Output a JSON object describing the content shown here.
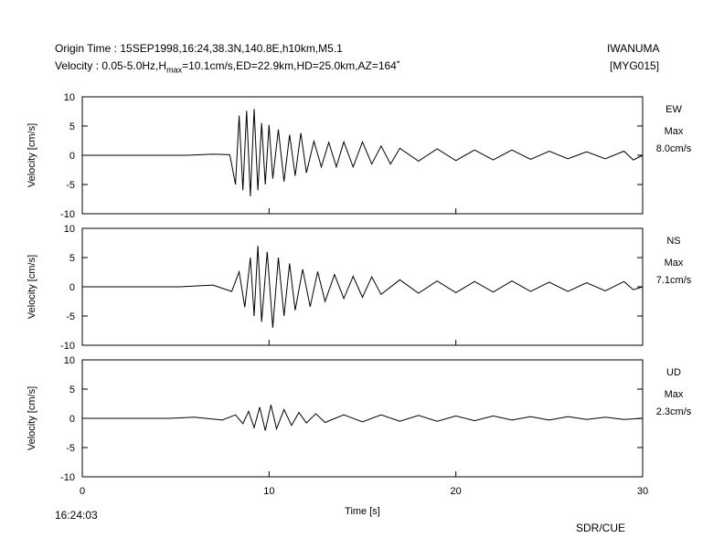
{
  "header": {
    "origin_line": "Origin Time : 15SEP1998,16:24,38.3N,140.8E,h10km,M5.1",
    "velocity_prefix": "Velocity : 0.05-5.0Hz,H",
    "velocity_sub": "max",
    "velocity_suffix": "=10.1cm/s,ED=22.9km,HD=25.0km,AZ=164˚",
    "station": "IWANUMA",
    "station_code": "[MYG015]"
  },
  "footer": {
    "start_time": "16:24:03",
    "credit": "SDR/CUE"
  },
  "chart_data": {
    "type": "line",
    "xlabel": "Time [s]",
    "xlim": [
      0,
      30
    ],
    "xticks": [
      "0",
      "10",
      "20",
      "30"
    ],
    "ylabel": "Velocity [cm/s]",
    "ylim": [
      -10,
      10
    ],
    "yticks": [
      "10",
      "5",
      "0",
      "-5",
      "-10"
    ],
    "panels": [
      {
        "component": "EW",
        "max_label": "Max",
        "max_value": "8.0cm/s",
        "series": {
          "x": [
            0,
            5.6,
            7.0,
            7.9,
            8.2,
            8.4,
            8.6,
            8.8,
            9.0,
            9.2,
            9.4,
            9.6,
            9.8,
            10.0,
            10.2,
            10.5,
            10.8,
            11.1,
            11.4,
            11.7,
            12.0,
            12.4,
            12.8,
            13.2,
            13.6,
            14.0,
            14.5,
            15.0,
            15.5,
            16.0,
            16.5,
            17.0,
            18.0,
            19.0,
            20.0,
            21.0,
            22.0,
            23.0,
            24.0,
            25.0,
            26.0,
            27.0,
            28.0,
            29.0,
            29.5,
            30.0
          ],
          "y": [
            0,
            0,
            0.2,
            0.1,
            -5,
            6.8,
            -6,
            7.6,
            -7,
            7.9,
            -6,
            5.5,
            -5,
            5.2,
            -4,
            4.4,
            -4.5,
            3.5,
            -3.5,
            3.8,
            -3,
            2.4,
            -2,
            2.2,
            -2,
            2.3,
            -2,
            2.3,
            -1.5,
            1.6,
            -1.5,
            1.2,
            -1,
            1.1,
            -0.9,
            0.9,
            -0.8,
            0.9,
            -0.7,
            0.7,
            -0.6,
            0.6,
            -0.6,
            0.7,
            -0.8,
            0
          ]
        }
      },
      {
        "component": "NS",
        "max_label": "Max",
        "max_value": "7.1cm/s",
        "series": {
          "x": [
            0,
            5.2,
            7.0,
            8.0,
            8.4,
            8.7,
            9.0,
            9.2,
            9.4,
            9.6,
            9.9,
            10.2,
            10.5,
            10.8,
            11.1,
            11.4,
            11.8,
            12.2,
            12.6,
            13.0,
            13.5,
            14.0,
            14.5,
            15.0,
            15.5,
            16.0,
            17.0,
            18.0,
            19.0,
            20.0,
            21.0,
            22.0,
            23.0,
            24.0,
            25.0,
            26.0,
            27.0,
            28.0,
            29.0,
            29.5,
            30.0
          ],
          "y": [
            0,
            0,
            0.3,
            -0.8,
            2.6,
            -3.5,
            5,
            -5,
            7,
            -6,
            6,
            -7,
            5,
            -5,
            4,
            -4,
            3,
            -3.4,
            2.6,
            -2.5,
            2.1,
            -2,
            1.8,
            -1.8,
            1.7,
            -1.3,
            1.2,
            -1.1,
            1,
            -1,
            0.9,
            -0.9,
            1,
            -0.8,
            0.8,
            -0.8,
            0.7,
            -0.7,
            0.9,
            -0.5,
            0
          ]
        }
      },
      {
        "component": "UD",
        "max_label": "Max",
        "max_value": "2.3cm/s",
        "series": {
          "x": [
            0,
            4.7,
            6.0,
            7.5,
            8.2,
            8.6,
            8.9,
            9.2,
            9.5,
            9.8,
            10.1,
            10.4,
            10.8,
            11.2,
            11.6,
            12.0,
            12.5,
            13.0,
            14.0,
            15.0,
            16.0,
            17.0,
            18.0,
            19.0,
            20.0,
            21.0,
            22.0,
            23.0,
            24.0,
            25.0,
            26.0,
            27.0,
            28.0,
            29.0,
            30.0
          ],
          "y": [
            0,
            0,
            0.2,
            -0.3,
            0.6,
            -0.9,
            1.2,
            -1.6,
            1.9,
            -2.1,
            2.3,
            -1.8,
            1.5,
            -1.2,
            1,
            -0.8,
            0.8,
            -0.7,
            0.6,
            -0.6,
            0.6,
            -0.5,
            0.5,
            -0.5,
            0.4,
            -0.4,
            0.4,
            -0.3,
            0.3,
            -0.3,
            0.3,
            -0.2,
            0.2,
            -0.2,
            0
          ]
        }
      }
    ]
  }
}
